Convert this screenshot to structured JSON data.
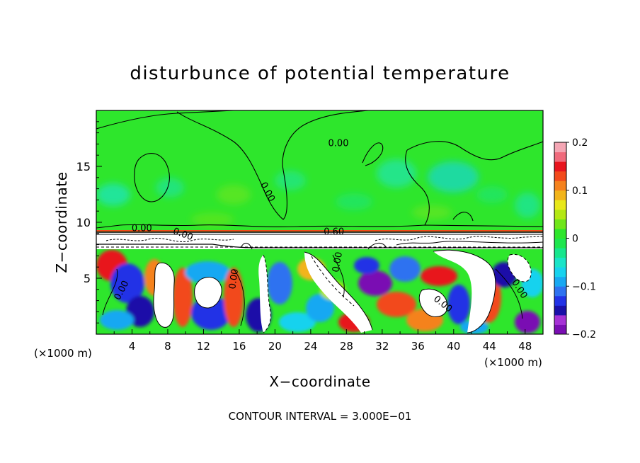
{
  "chart_data": {
    "type": "heatmap",
    "title": "disturbunce of potential temperature",
    "xlabel": "X−coordinate",
    "ylabel": "Z−coordinate",
    "x_unit_left": "(×1000 m)",
    "x_unit_right": "(×1000 m)",
    "x_ticks": [
      "4",
      "8",
      "12",
      "16",
      "20",
      "24",
      "28",
      "32",
      "36",
      "40",
      "44",
      "48"
    ],
    "y_ticks": [
      "5",
      "10",
      "15"
    ],
    "xlim": [
      0,
      50
    ],
    "ylim": [
      0,
      20
    ],
    "footer": "CONTOUR INTERVAL = 3.000E−01",
    "colorbar": {
      "min": -0.2,
      "max": 0.2,
      "tick_values": [
        0.2,
        0.1,
        0,
        -0.1,
        -0.2
      ],
      "tick_labels": [
        "0.2",
        "0.1",
        "0",
        "−0.1",
        "−0.2"
      ],
      "colors": [
        "#7a0eb3",
        "#a632d6",
        "#1a0fa8",
        "#2232e6",
        "#2e72f0",
        "#18a8f2",
        "#17d2ee",
        "#1ae4c8",
        "#17e68d",
        "#1ee64e",
        "#2ee62c",
        "#70e61a",
        "#b4e814",
        "#e8e81a",
        "#f2b41a",
        "#f5821e",
        "#f24a1c",
        "#e8141e",
        "#f06a7c",
        "#f4a6b4"
      ]
    },
    "contour_labels": [
      {
        "text": "0.00",
        "x": 27.1,
        "y": 16.8,
        "rotate": 0
      },
      {
        "text": "0.00",
        "x": 18.9,
        "y": 12.6,
        "rotate": 62
      },
      {
        "text": "0.00",
        "x": 5.1,
        "y": 9.2,
        "rotate": 0
      },
      {
        "text": "0.00",
        "x": 9.6,
        "y": 8.7,
        "rotate": 20
      },
      {
        "text": "0.60",
        "x": 26.6,
        "y": 8.9,
        "rotate": 0
      },
      {
        "text": "0.00",
        "x": 27.3,
        "y": 6.4,
        "rotate": -80
      },
      {
        "text": "0.00",
        "x": 3.1,
        "y": 3.8,
        "rotate": -62
      },
      {
        "text": "0.00",
        "x": 15.7,
        "y": 4.9,
        "rotate": -82
      },
      {
        "text": "0.00",
        "x": 38.6,
        "y": 2.5,
        "rotate": 38
      },
      {
        "text": "0.00",
        "x": 47.1,
        "y": 3.9,
        "rotate": 58
      }
    ]
  }
}
